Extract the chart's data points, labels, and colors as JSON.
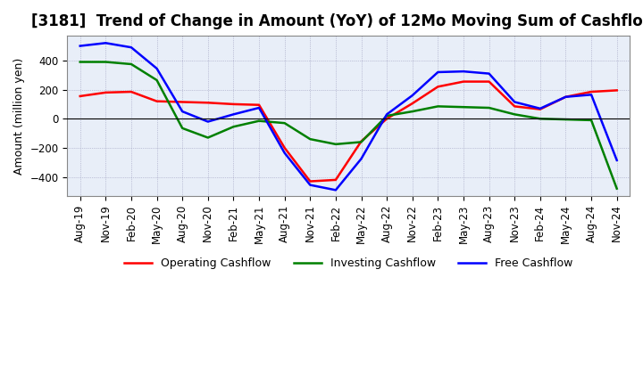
{
  "title": "[3181]  Trend of Change in Amount (YoY) of 12Mo Moving Sum of Cashflows",
  "ylabel": "Amount (million yen)",
  "xlabels": [
    "Aug-19",
    "Nov-19",
    "Feb-20",
    "May-20",
    "Aug-20",
    "Nov-20",
    "Feb-21",
    "May-21",
    "Aug-21",
    "Nov-21",
    "Feb-22",
    "May-22",
    "Aug-22",
    "Nov-22",
    "Feb-23",
    "May-23",
    "Aug-23",
    "Nov-23",
    "Feb-24",
    "May-24",
    "Aug-24",
    "Nov-24"
  ],
  "operating": [
    155,
    180,
    185,
    120,
    115,
    110,
    100,
    95,
    -200,
    -430,
    -420,
    -155,
    0,
    105,
    220,
    255,
    255,
    85,
    65,
    150,
    185,
    195
  ],
  "investing": [
    390,
    390,
    375,
    265,
    -65,
    -130,
    -55,
    -15,
    -30,
    -140,
    -175,
    -160,
    20,
    50,
    85,
    80,
    75,
    30,
    0,
    -5,
    -10,
    -480
  ],
  "free": [
    500,
    520,
    490,
    345,
    50,
    -20,
    30,
    75,
    -235,
    -455,
    -490,
    -275,
    30,
    160,
    320,
    325,
    310,
    115,
    70,
    150,
    165,
    -285
  ],
  "ylim": [
    -530,
    570
  ],
  "yticks": [
    -400,
    -200,
    0,
    200,
    400
  ],
  "operating_color": "#ff0000",
  "investing_color": "#008000",
  "free_color": "#0000ff",
  "background_color": "#ffffff",
  "plot_bg_color": "#e8eef8",
  "grid_color": "#9999bb",
  "title_fontsize": 12,
  "label_fontsize": 9,
  "tick_fontsize": 8.5,
  "legend_fontsize": 9,
  "linewidth": 1.8
}
